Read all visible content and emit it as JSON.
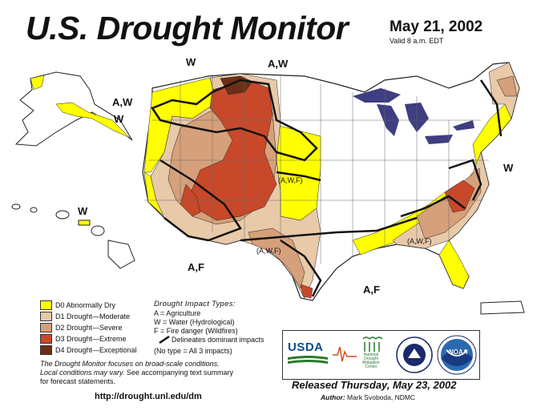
{
  "header": {
    "title": "U.S. Drought Monitor",
    "date": "May 21, 2002",
    "valid": "Valid 8 a.m. EDT"
  },
  "map_labels": {
    "nw_w": "W",
    "n_aw": "A,W",
    "ak_aw": "A,W",
    "ak_w": "W",
    "hi_w": "W",
    "se_w": "W",
    "sw_af": "A,F",
    "tx_af": "A,F",
    "plains_awf": "(A,W,F)",
    "tx_awf": "(A,W,F)",
    "south_awf": "(A,W,F)"
  },
  "legend": {
    "items": [
      {
        "label": "D0 Abnormally Dry",
        "color": "#ffff00"
      },
      {
        "label": "D1 Drought—Moderate",
        "color": "#e8c9a8"
      },
      {
        "label": "D2 Drought—Severe",
        "color": "#d6a07a"
      },
      {
        "label": "D3 Drought—Extreme",
        "color": "#c8482a"
      },
      {
        "label": "D4 Drought—Exceptional",
        "color": "#6b2f17"
      }
    ]
  },
  "impacts": {
    "title": "Drought Impact Types:",
    "a": "A = Agriculture",
    "w": "W = Water (Hydrological)",
    "f": "F = Fire danger (Wildfires)",
    "delineates": "Delineates dominant impacts",
    "note": "(No type = All 3 impacts)"
  },
  "footer": {
    "note_em": "The Drought Monitor",
    "note_rest1": " focuses on broad-scale conditions.",
    "note_line2": "Local conditions may vary.",
    "note_line2b": " See accompanying text summary",
    "note_line3": "for forecast statements.",
    "url": "http://drought.unl.edu/dm",
    "released": "Released Thursday, May 23, 2002",
    "author_label": "Author:",
    "author_name": " Mark Svoboda, NDMC"
  },
  "logos": {
    "usda": "USDA",
    "ndmc": "National Drought Mitigation Center",
    "noaa": "NOAA"
  }
}
